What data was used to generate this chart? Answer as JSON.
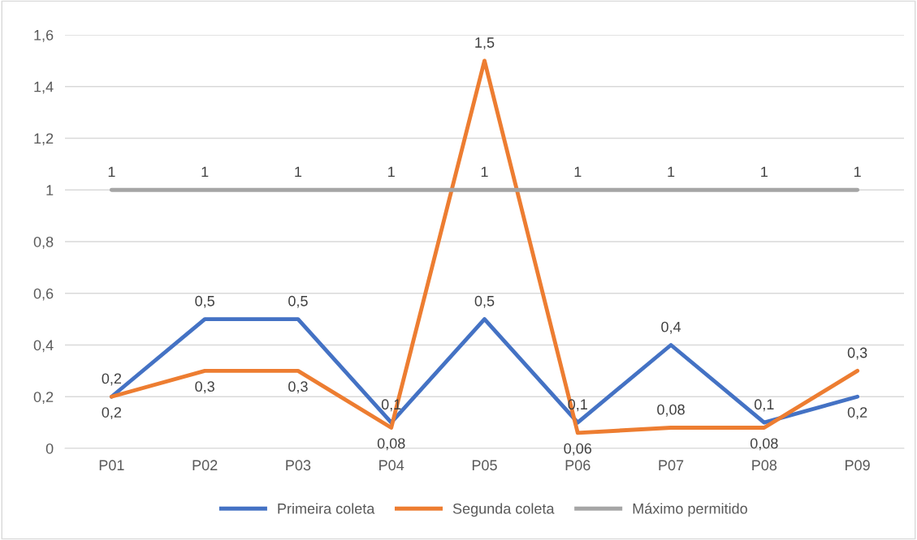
{
  "chart_data": {
    "type": "line",
    "categories": [
      "P01",
      "P02",
      "P03",
      "P04",
      "P05",
      "P06",
      "P07",
      "P08",
      "P09"
    ],
    "series": [
      {
        "name": "Primeira coleta",
        "color": "#4472c4",
        "values": [
          0.2,
          0.5,
          0.5,
          0.1,
          0.5,
          0.1,
          0.4,
          0.1,
          0.2
        ],
        "value_labels": [
          "0,2",
          "0,5",
          "0,5",
          "0,1",
          "0,5",
          "0,1",
          "0,4",
          "0,1",
          "0,2"
        ]
      },
      {
        "name": "Segunda coleta",
        "color": "#ed7d31",
        "values": [
          0.2,
          0.3,
          0.3,
          0.08,
          1.5,
          0.06,
          0.08,
          0.08,
          0.3
        ],
        "value_labels": [
          "0,2",
          "0,3",
          "0,3",
          "0,08",
          "1,5",
          "0,06",
          "0,08",
          "0,08",
          "0,3"
        ]
      },
      {
        "name": "Máximo permitido",
        "color": "#a5a5a5",
        "values": [
          1,
          1,
          1,
          1,
          1,
          1,
          1,
          1,
          1
        ],
        "value_labels": [
          "1",
          "1",
          "1",
          "1",
          "1",
          "1",
          "1",
          "1",
          "1"
        ]
      }
    ],
    "ylim": [
      0,
      1.6
    ],
    "yticks": [
      0,
      {
        "value": 0.2,
        "label": "0,2"
      },
      {
        "value": 0.4,
        "label": "0,4"
      },
      {
        "value": 0.6,
        "label": "0,6"
      },
      {
        "value": 0.8,
        "label": "0,8"
      },
      1,
      {
        "value": 1.2,
        "label": "1,2"
      },
      {
        "value": 1.4,
        "label": "1,4"
      },
      {
        "value": 1.6,
        "label": "1,6"
      }
    ],
    "grid": "y",
    "legend": "bottom",
    "marker": "none",
    "line_style": "solid"
  }
}
